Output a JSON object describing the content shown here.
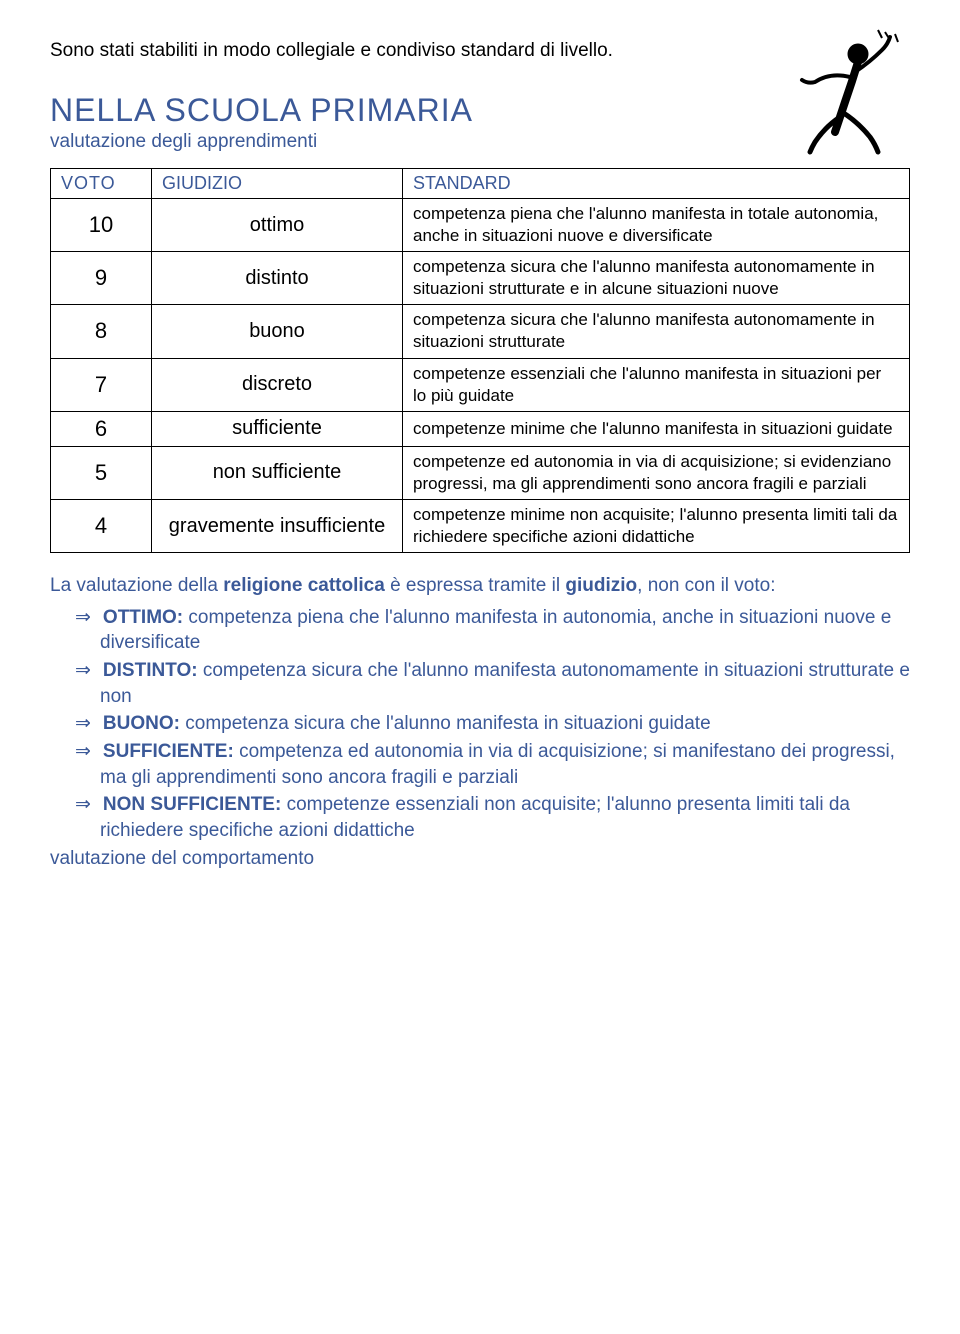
{
  "intro": "Sono stati stabiliti in modo collegiale e condiviso standard di livello.",
  "title": "NELLA SCUOLA PRIMARIA",
  "subtitle": "valutazione degli apprendimenti",
  "table": {
    "headers": [
      "VOTO",
      "GIUDIZIO",
      "STANDARD"
    ],
    "rows": [
      {
        "voto": "10",
        "giudizio": "ottimo",
        "standard": "competenza piena che l'alunno manifesta in totale autonomia, anche in situazioni nuove e diversificate"
      },
      {
        "voto": "9",
        "giudizio": "distinto",
        "standard": "competenza sicura che l'alunno manifesta autonomamente in situazioni strutturate e in alcune situazioni nuove"
      },
      {
        "voto": "8",
        "giudizio": "buono",
        "standard": "competenza sicura che l'alunno manifesta autonomamente in situazioni strutturate"
      },
      {
        "voto": "7",
        "giudizio": "discreto",
        "standard": "competenze essenziali che l'alunno manifesta in situazioni per lo più guidate"
      },
      {
        "voto": "6",
        "giudizio": "sufficiente",
        "standard": "competenze minime che l'alunno manifesta in situazioni guidate"
      },
      {
        "voto": "5",
        "giudizio": "non sufficiente",
        "standard": "competenze ed autonomia in via di acquisizione; si evidenziano progressi, ma gli apprendimenti sono ancora fragili e parziali"
      },
      {
        "voto": "4",
        "giudizio": "gravemente insufficiente",
        "standard": "competenze minime non acquisite; l'alunno presenta limiti tali da richiedere specifiche azioni didattiche"
      }
    ]
  },
  "religion": {
    "intro_pre": "La valutazione della ",
    "intro_bold1": "religione cattolica",
    "intro_mid": " è espressa tramite il ",
    "intro_bold2": "giudizio",
    "intro_post": ", non con il voto:",
    "items": [
      {
        "label": "OTTIMO:",
        "text": " competenza piena che l'alunno manifesta in autonomia, anche in situazioni nuove e diversificate"
      },
      {
        "label": "DISTINTO:",
        "text": " competenza sicura che l'alunno manifesta autonomamente in situazioni strutturate e non"
      },
      {
        "label": "BUONO:",
        "text": " competenza sicura che l'alunno manifesta in situazioni guidate"
      },
      {
        "label": "SUFFICIENTE:",
        "text": " competenza ed autonomia in via di acquisizione; si manifestano dei progressi, ma gli apprendimenti sono ancora fragili e parziali"
      },
      {
        "label": "NON SUFFICIENTE:",
        "text": " competenze essenziali non acquisite; l'alunno presenta limiti tali da richiedere specifiche azioni didattiche"
      }
    ]
  },
  "behavior": "valutazione del comportamento",
  "colors": {
    "text_black": "#000000",
    "text_blue": "#3b5998",
    "background": "#ffffff",
    "border": "#000000"
  }
}
